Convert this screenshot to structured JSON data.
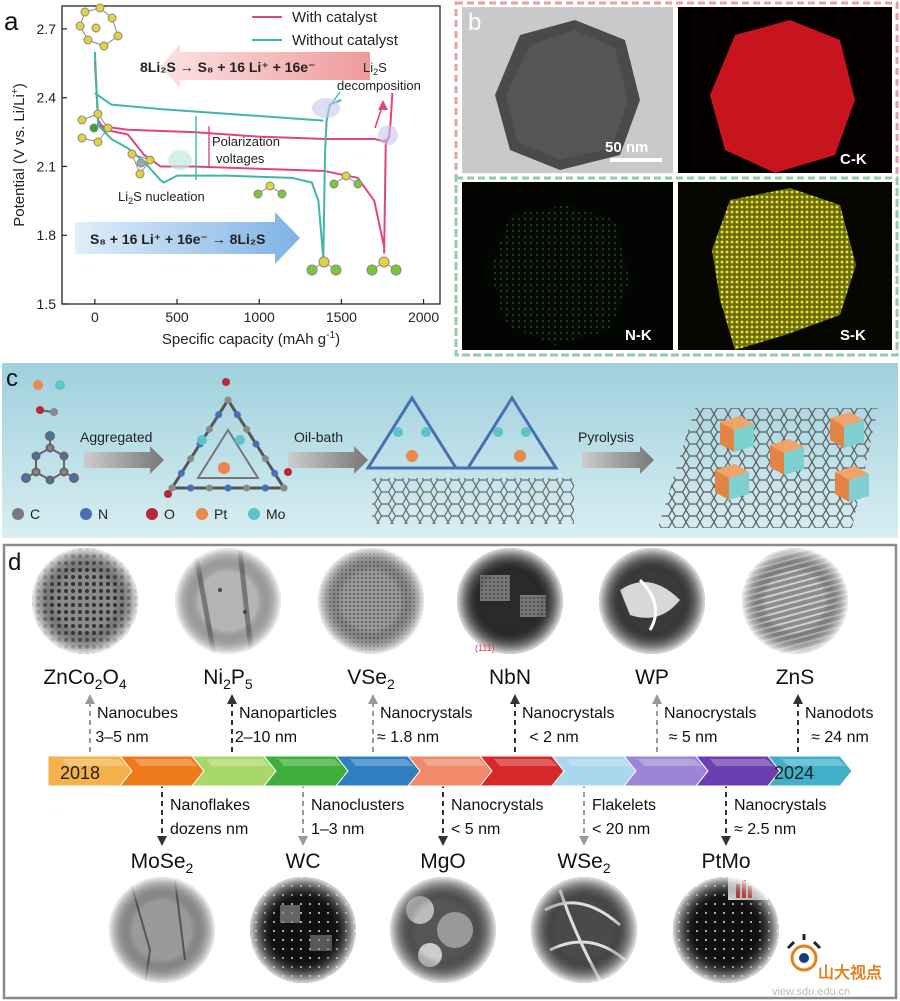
{
  "panels": {
    "a": {
      "letter": "a",
      "chart_data": {
        "type": "line",
        "xlabel": "Specific capacity (mAh g",
        "xlabel_sup": "-1",
        "xlabel_tail": ")",
        "ylabel": "Potential (V vs. Li/Li",
        "ylabel_sup": "+",
        "ylabel_tail": ")",
        "xlim": [
          -200,
          2100
        ],
        "ylim": [
          1.5,
          2.8
        ],
        "x_ticks": [
          0,
          500,
          1000,
          1500,
          2000
        ],
        "y_ticks": [
          1.5,
          1.8,
          2.1,
          2.4,
          2.7
        ],
        "x_tick_labels": [
          "0",
          "500",
          "1000",
          "1500",
          "2000"
        ],
        "y_tick_labels": [
          "1.5",
          "1.8",
          "2.1",
          "2.4",
          "2.7"
        ],
        "legend_position": "top-right",
        "series": [
          {
            "name": "With catalyst",
            "color": "#e0457b",
            "discharge": [
              [
                0,
                2.56
              ],
              [
                20,
                2.3
              ],
              [
                60,
                2.26
              ],
              [
                200,
                2.24
              ],
              [
                300,
                2.15
              ],
              [
                400,
                2.1
              ],
              [
                600,
                2.1
              ],
              [
                1000,
                2.09
              ],
              [
                1400,
                2.08
              ],
              [
                1600,
                2.05
              ],
              [
                1700,
                1.95
              ],
              [
                1760,
                1.75
              ]
            ],
            "charge": [
              [
                1760,
                1.72
              ],
              [
                1770,
                2.2
              ],
              [
                1790,
                2.23
              ],
              [
                1800,
                2.3
              ],
              [
                1810,
                2.42
              ]
            ],
            "charge_back": [
              [
                0,
                2.28
              ],
              [
                200,
                2.26
              ],
              [
                600,
                2.25
              ],
              [
                1000,
                2.23
              ],
              [
                1400,
                2.22
              ],
              [
                1700,
                2.22
              ],
              [
                1760,
                2.21
              ],
              [
                1780,
                2.22
              ]
            ]
          },
          {
            "name": "Without catalyst",
            "color": "#3fb6a8",
            "discharge": [
              [
                0,
                2.6
              ],
              [
                20,
                2.28
              ],
              [
                100,
                2.22
              ],
              [
                200,
                2.18
              ],
              [
                300,
                2.12
              ],
              [
                400,
                2.04
              ],
              [
                420,
                2.03
              ],
              [
                500,
                2.06
              ],
              [
                800,
                2.06
              ],
              [
                1200,
                2.05
              ],
              [
                1320,
                2.03
              ],
              [
                1360,
                1.95
              ],
              [
                1390,
                1.7
              ]
            ],
            "charge": [
              [
                1390,
                1.7
              ],
              [
                1400,
                2.15
              ],
              [
                1410,
                2.3
              ],
              [
                1430,
                2.37
              ],
              [
                1500,
                2.39
              ]
            ],
            "charge_back": [
              [
                0,
                2.42
              ],
              [
                100,
                2.37
              ],
              [
                400,
                2.35
              ],
              [
                800,
                2.33
              ],
              [
                1200,
                2.31
              ],
              [
                1390,
                2.3
              ]
            ]
          }
        ]
      },
      "annotations": {
        "decomp_eq": "8Li₂S → S₈ + 16 Li⁺ + 16e⁻",
        "nucl_eq": "S₈ + 16 Li⁺ + 16e⁻ → 8Li₂S",
        "decomposition_1": "Li",
        "decomposition_sub": "2",
        "decomposition_1b": "S",
        "decomposition_2": "decomposition",
        "polarization_1": "Polarization",
        "polarization_2": "voltages",
        "nucleation": "Li",
        "nucleation_sub": "2",
        "nucleation_tail": "S nucleation"
      }
    },
    "b": {
      "letter": "b",
      "scale_bar": "50 nm",
      "maps": [
        "C-K",
        "N-K",
        "S-K"
      ]
    },
    "c": {
      "letter": "c",
      "steps": [
        "Aggregated",
        "Oil-bath",
        "Pyrolysis"
      ],
      "legend": [
        {
          "label": "C",
          "color": "#7a7a7a"
        },
        {
          "label": "N",
          "color": "#4a6fb3"
        },
        {
          "label": "O",
          "color": "#b52a3a"
        },
        {
          "label": "Pt",
          "color": "#e6894b"
        },
        {
          "label": "Mo",
          "color": "#5cc4c8"
        }
      ]
    },
    "d": {
      "letter": "d",
      "years": [
        "2018",
        "2024"
      ],
      "top": [
        {
          "name": "ZnCo",
          "sub1": "2",
          "mid": "O",
          "sub2": "4",
          "desc1": "Nanocubes",
          "desc2": "3–5 nm"
        },
        {
          "name": "Ni",
          "sub1": "2",
          "mid": "P",
          "sub2": "5",
          "desc1": "Nanoparticles",
          "desc2": "2–10 nm"
        },
        {
          "name": "VSe",
          "sub1": "2",
          "mid": "",
          "sub2": "",
          "desc1": "Nanocrystals",
          "desc2": "≈ 1.8 nm"
        },
        {
          "name": "NbN",
          "sub1": "",
          "mid": "",
          "sub2": "",
          "desc1": "Nanocrystals",
          "desc2": "< 2 nm"
        },
        {
          "name": "WP",
          "sub1": "",
          "mid": "",
          "sub2": "",
          "desc1": "Nanocrystals",
          "desc2": "≈ 5 nm"
        },
        {
          "name": "ZnS",
          "sub1": "",
          "mid": "",
          "sub2": "",
          "desc1": "Nanodots",
          "desc2": "≈ 24 nm"
        }
      ],
      "bottom": [
        {
          "name": "MoSe",
          "sub1": "2",
          "desc1": "Nanoflakes",
          "desc2": "dozens nm"
        },
        {
          "name": "WC",
          "sub1": "",
          "desc1": "Nanoclusters",
          "desc2": "1–3 nm"
        },
        {
          "name": "MgO",
          "sub1": "",
          "desc1": "Nanocrystals",
          "desc2": "< 5 nm"
        },
        {
          "name": "WSe",
          "sub1": "2",
          "desc1": "Flakelets",
          "desc2": "< 20 nm"
        },
        {
          "name": "PtMo",
          "sub1": "",
          "desc1": "Nanocrystals",
          "desc2": "≈ 2.5 nm"
        }
      ],
      "nbn_inset": "(111)",
      "watermark_1": "山大视点",
      "watermark_2": "view.sdu.edu.cn"
    }
  },
  "colors": {
    "with_catalyst": "#e0457b",
    "without_catalyst": "#3fb6a8",
    "panel_c_bg": "#a9d5de",
    "timeline": [
      "#f5b24a",
      "#ef7a1a",
      "#a8d86a",
      "#3fae3a",
      "#2f7fc1",
      "#f08a6a",
      "#d62a2a",
      "#a9d7ee",
      "#9b86d6",
      "#6b3fb0",
      "#3fb0c8"
    ]
  }
}
